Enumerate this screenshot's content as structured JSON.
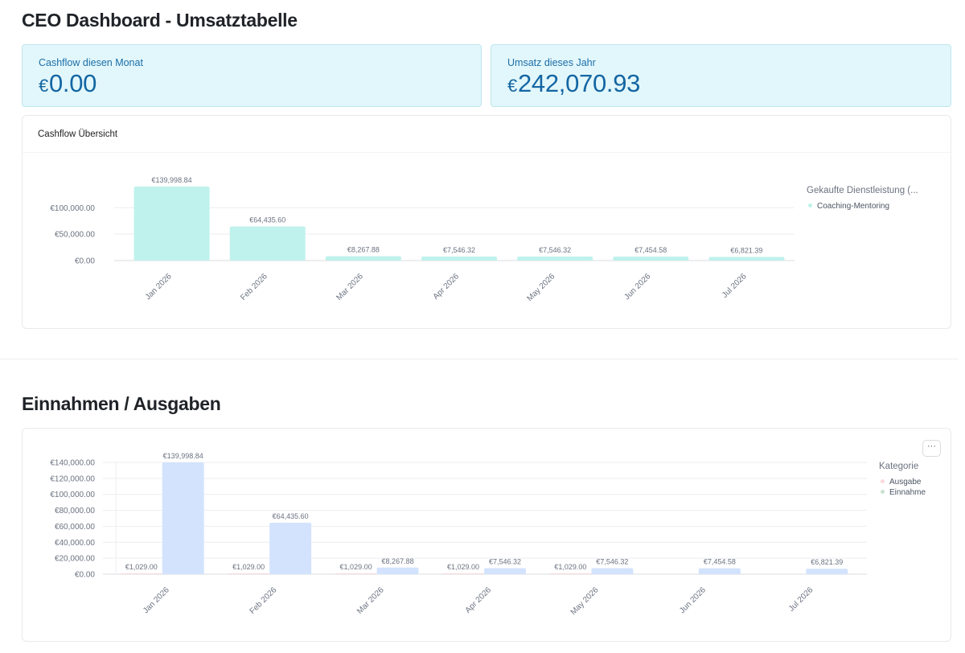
{
  "page": {
    "title": "CEO Dashboard - Umsatztabelle"
  },
  "kpis": {
    "cashflow": {
      "label": "Cashflow diesen Monat",
      "currency": "€",
      "value": "0.00"
    },
    "revenue": {
      "label": "Umsatz dieses Jahr",
      "currency": "€",
      "value": "242,070.93"
    }
  },
  "cashflow_panel": {
    "title": "Cashflow Übersicht",
    "legend_title": "Gekaufte Dienstleistung (...",
    "legend_items": [
      "Coaching-Mentoring"
    ]
  },
  "section2": {
    "title": "Einnahmen / Ausgaben",
    "menu_label": "···"
  },
  "income_panel": {
    "legend_title": "Kategorie",
    "legend_items": [
      "Ausgabe",
      "Einnahme"
    ]
  },
  "colors": {
    "teal_bar": "#bff2ec",
    "blue_bar": "#d3e3fd",
    "pink_bar": "#fbd9dc",
    "kpi_text": "#1466a3"
  },
  "chart_data": [
    {
      "type": "bar",
      "title": "Cashflow Übersicht",
      "categories": [
        "Jan 2026",
        "Feb 2026",
        "Mar 2026",
        "Apr 2026",
        "May 2026",
        "Jun 2026",
        "Jul 2026"
      ],
      "series": [
        {
          "name": "Coaching-Mentoring",
          "values": [
            139998.84,
            64435.6,
            8267.88,
            7546.32,
            7546.32,
            7454.58,
            6821.39
          ],
          "color": "#bff2ec"
        }
      ],
      "data_labels": [
        "€139,998.84",
        "€64,435.60",
        "€8,267.88",
        "€7,546.32",
        "€7,546.32",
        "€7,454.58",
        "€6,821.39"
      ],
      "yticks": [
        0,
        50000,
        100000
      ],
      "ytick_labels": [
        "€0.00",
        "€50,000.00",
        "€100,000.00"
      ],
      "ylim": [
        0,
        140000
      ],
      "grid": true,
      "legend": "right",
      "legend_title": "Gekaufte Dienstleistung (..."
    },
    {
      "type": "bar",
      "title": "Einnahmen / Ausgaben",
      "categories": [
        "Jan 2026",
        "Feb 2026",
        "Mar 2026",
        "Apr 2026",
        "May 2026",
        "Jun 2026",
        "Jul 2026"
      ],
      "series": [
        {
          "name": "Ausgabe",
          "values": [
            1029.0,
            1029.0,
            1029.0,
            1029.0,
            1029.0,
            null,
            null
          ],
          "color": "#fbd9dc",
          "data_labels": [
            "€1,029.00",
            "€1,029.00",
            "€1,029.00",
            "€1,029.00",
            "€1,029.00",
            "",
            ""
          ]
        },
        {
          "name": "Einnahme",
          "values": [
            139998.84,
            64435.6,
            8267.88,
            7546.32,
            7546.32,
            7454.58,
            6821.39
          ],
          "color": "#d3e3fd",
          "data_labels": [
            "€139,998.84",
            "€64,435.60",
            "€8,267.88",
            "€7,546.32",
            "€7,546.32",
            "€7,454.58",
            "€6,821.39"
          ]
        }
      ],
      "yticks": [
        0,
        20000,
        40000,
        60000,
        80000,
        100000,
        120000,
        140000
      ],
      "ytick_labels": [
        "€0.00",
        "€20,000.00",
        "€40,000.00",
        "€60,000.00",
        "€80,000.00",
        "€100,000.00",
        "€120,000.00",
        "€140,000.00"
      ],
      "ylim": [
        0,
        140000
      ],
      "grid": true,
      "legend": "right",
      "legend_title": "Kategorie"
    }
  ]
}
